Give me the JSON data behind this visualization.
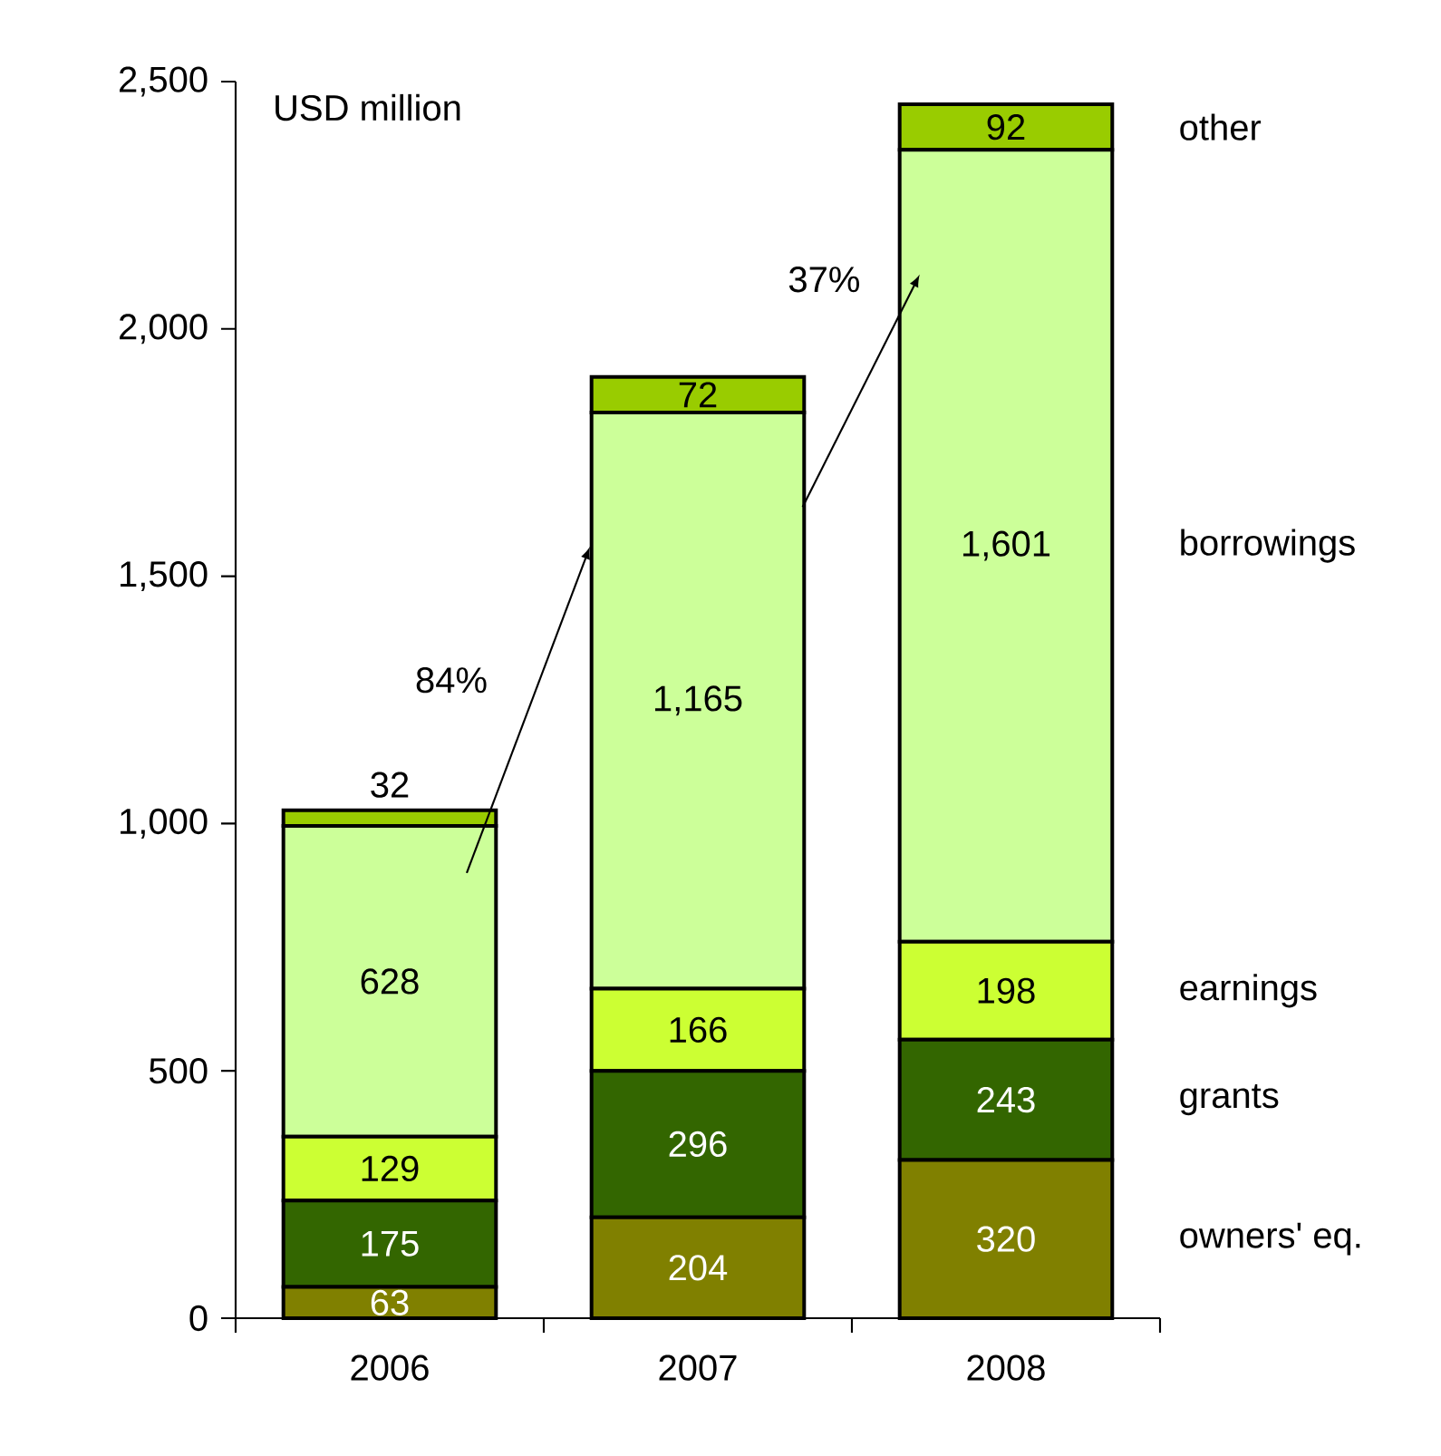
{
  "chart_data": {
    "type": "bar",
    "stacked": true,
    "ylabel": "USD million",
    "categories": [
      "2006",
      "2007",
      "2008"
    ],
    "series": [
      {
        "name": "owners' eq.",
        "color": "#808000",
        "values": [
          63,
          204,
          320
        ],
        "value_labels": [
          "63",
          "204",
          "320"
        ]
      },
      {
        "name": "grants",
        "color": "#336600",
        "values": [
          175,
          296,
          243
        ],
        "value_labels": [
          "175",
          "296",
          "243"
        ]
      },
      {
        "name": "earnings",
        "color": "#ccff33",
        "values": [
          129,
          166,
          198
        ],
        "value_labels": [
          "129",
          "166",
          "198"
        ]
      },
      {
        "name": "borrowings",
        "color": "#ccff99",
        "values": [
          628,
          1165,
          1601
        ],
        "value_labels": [
          "628",
          "1,165",
          "1,601"
        ]
      },
      {
        "name": "other",
        "color": "#99cc00",
        "values": [
          32,
          72,
          92
        ],
        "value_labels": [
          "32",
          "72",
          "92"
        ]
      }
    ],
    "ylim": [
      0,
      2500
    ],
    "yticks": [
      0,
      500,
      {
        "value": 1000,
        "label": "1,000"
      },
      {
        "value": 1500,
        "label": "1,500"
      },
      {
        "value": 2000,
        "label": "2,000"
      },
      {
        "value": 2500,
        "label": "2,500"
      }
    ],
    "annotations": [
      "84%",
      "37%"
    ],
    "grid": false
  }
}
